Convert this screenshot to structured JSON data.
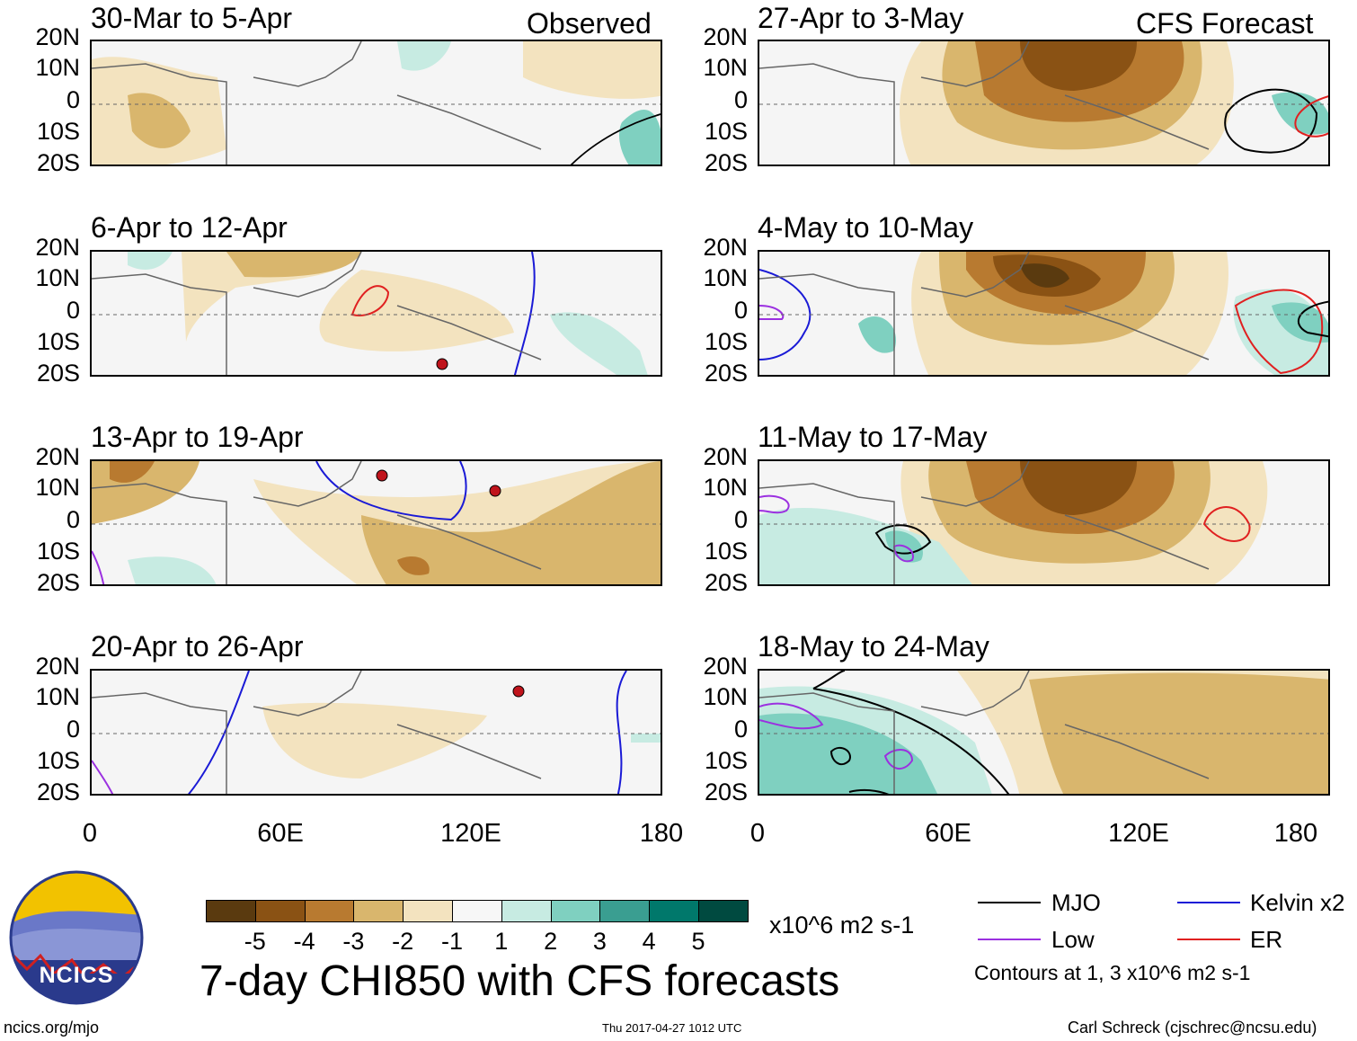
{
  "columns": {
    "left_title": "Observed",
    "right_title": "CFS Forecast"
  },
  "panels_left": [
    {
      "label": "30-Mar to 5-Apr"
    },
    {
      "label": "6-Apr to 12-Apr"
    },
    {
      "label": "13-Apr to 19-Apr"
    },
    {
      "label": "20-Apr to 26-Apr"
    }
  ],
  "panels_right": [
    {
      "label": "27-Apr to 3-May"
    },
    {
      "label": "4-May to 10-May"
    },
    {
      "label": "11-May to 17-May"
    },
    {
      "label": "18-May to 24-May"
    }
  ],
  "y_ticks": [
    "20N",
    "10N",
    "0",
    "10S",
    "20S"
  ],
  "x_ticks": [
    "0",
    "60E",
    "120E",
    "180"
  ],
  "colorbar": {
    "labels": [
      "-5",
      "-4",
      "-3",
      "-2",
      "-1",
      "1",
      "2",
      "3",
      "4",
      "5"
    ],
    "colors": [
      "#5a3a0f",
      "#8a5214",
      "#b87a30",
      "#d9b66d",
      "#f3e3bf",
      "#f7f7f7",
      "#c7ebe2",
      "#7fd0c0",
      "#3a9e91",
      "#00786b",
      "#004a40"
    ],
    "units": "x10^6 m2 s-1"
  },
  "legend": {
    "items": [
      {
        "label": "MJO",
        "color": "#000000"
      },
      {
        "label": "Kelvin x2",
        "color": "#1a1ad6"
      },
      {
        "label": "Low",
        "color": "#9b30e0"
      },
      {
        "label": "ER",
        "color": "#e02020"
      }
    ],
    "note": "Contours at 1, 3 x10^6 m2 s-1"
  },
  "title": "7-day CHI850 with CFS forecasts",
  "logo_text": "NCICS",
  "footer": {
    "url": "ncics.org/mjo",
    "timestamp": "Thu 2017-04-27 1012 UTC",
    "author": "Carl Schreck (cjschrec@ncsu.edu)"
  }
}
